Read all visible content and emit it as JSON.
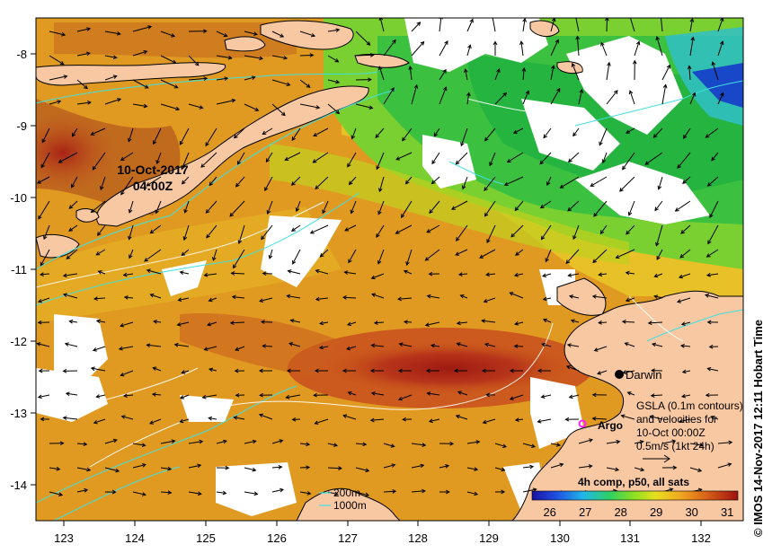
{
  "map": {
    "overlay_date": "10-Oct-2017",
    "overlay_time": "04:00Z",
    "credit": "© IMOS 14-Nov-2017 12:11 Hobart Time",
    "city": "Darwin",
    "float_label": "Argo",
    "legend": {
      "line1": "GSLA (0.1m contours)",
      "line2": "and velocities for",
      "line3": "10-Oct 00:00Z",
      "line4": "0.5m/s (1kt 24h)"
    },
    "depth_contours": [
      "200m",
      "1000m"
    ],
    "colorbar": {
      "title": "4h comp, p50, all sats",
      "ticks": [
        "26",
        "27",
        "28",
        "29",
        "30",
        "31"
      ],
      "range": [
        25.5,
        31.3
      ]
    },
    "x_ticks": [
      "123",
      "124",
      "125",
      "126",
      "127",
      "128",
      "129",
      "130",
      "131",
      "132"
    ],
    "y_ticks": [
      "-8",
      "-9",
      "-10",
      "-11",
      "-12",
      "-13",
      "-14"
    ],
    "colors": {
      "land": "#f8c8a2",
      "warm": "#b5281c",
      "mid": "#e8a020",
      "cool": "#30c030",
      "cold": "#1040c0",
      "contour_200": "#40e0e0",
      "contour_1000": "#40e0e0",
      "argo": "#ff20ff"
    }
  }
}
